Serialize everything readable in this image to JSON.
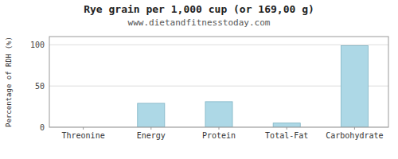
{
  "chart_data": {
    "type": "bar",
    "title": "Rye grain per 1,000 cup (or 169,00 g)",
    "subtitle": "www.dietandfitnesstoday.com",
    "categories": [
      "Threonine",
      "Energy",
      "Protein",
      "Total-Fat",
      "Carbohydrate"
    ],
    "values": [
      0,
      29,
      31,
      5,
      99
    ],
    "color": "#add8e6",
    "ylabel": "Percentage of RDH (%)",
    "ylim": [
      0,
      110
    ],
    "yticks": [
      0,
      50,
      100
    ],
    "grid": true
  }
}
